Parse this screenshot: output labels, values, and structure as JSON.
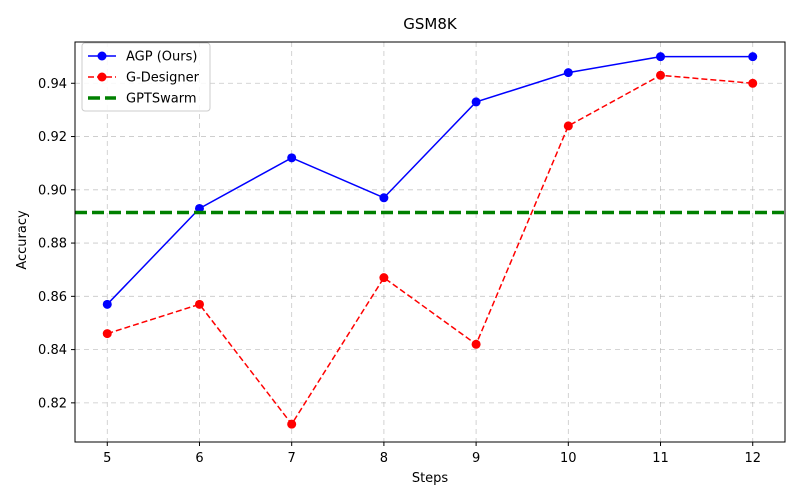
{
  "chart_data": {
    "type": "line",
    "title": "GSM8K",
    "xlabel": "Steps",
    "ylabel": "Accuracy",
    "x": [
      5,
      6,
      7,
      8,
      9,
      10,
      11,
      12
    ],
    "xlim": [
      4.65,
      12.35
    ],
    "ylim": [
      0.8053,
      0.9555
    ],
    "yticks": [
      0.82,
      0.84,
      0.86,
      0.88,
      0.9,
      0.92,
      0.94
    ],
    "ytick_labels": [
      "0.82",
      "0.84",
      "0.86",
      "0.88",
      "0.90",
      "0.92",
      "0.94"
    ],
    "xtick_labels": [
      "5",
      "6",
      "7",
      "8",
      "9",
      "10",
      "11",
      "12"
    ],
    "grid": true,
    "legend_position": "top-left",
    "series": [
      {
        "name": "AGP (Ours)",
        "color": "#0000ff",
        "style": "solid",
        "marker": "circle",
        "values": [
          0.857,
          0.893,
          0.912,
          0.897,
          0.933,
          0.944,
          0.95,
          0.95
        ]
      },
      {
        "name": "G-Designer",
        "color": "#ff0000",
        "style": "dashed",
        "marker": "circle",
        "values": [
          0.846,
          0.857,
          0.812,
          0.867,
          0.842,
          0.924,
          0.943,
          0.94
        ]
      },
      {
        "name": "GPTSwarm",
        "color": "#008000",
        "style": "dashed-thick",
        "marker": "none",
        "hline": 0.8915
      }
    ]
  }
}
